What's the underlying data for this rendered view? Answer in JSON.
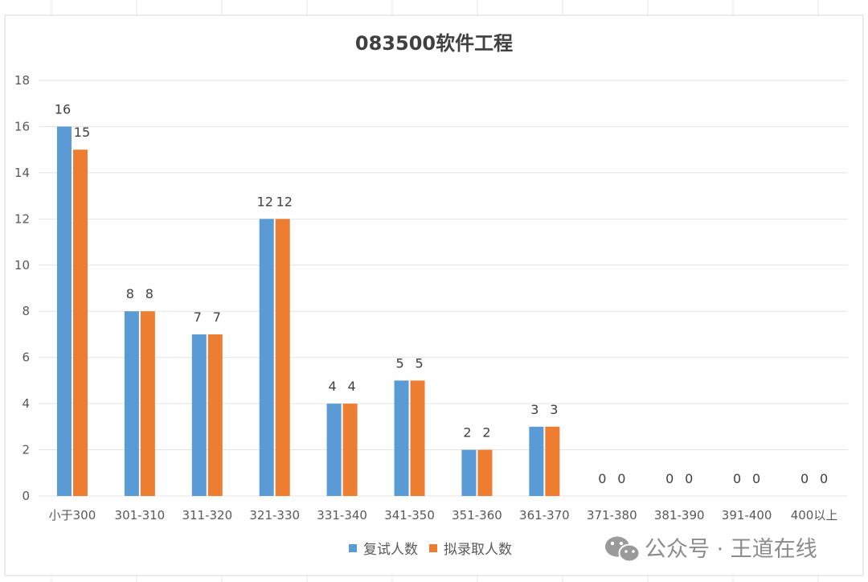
{
  "chart_data": {
    "type": "bar",
    "title": "083500软件工程",
    "xlabel": "",
    "ylabel": "",
    "ylim": [
      0,
      18
    ],
    "yticks": [
      0,
      2,
      4,
      6,
      8,
      10,
      12,
      14,
      16,
      18
    ],
    "grid": true,
    "legend_position": "bottom",
    "categories": [
      "小于300",
      "301-310",
      "311-320",
      "321-330",
      "331-340",
      "341-350",
      "351-360",
      "361-370",
      "371-380",
      "381-390",
      "391-400",
      "400以上"
    ],
    "series": [
      {
        "name": "复试人数",
        "color": "#5b9bd5",
        "values": [
          16,
          8,
          7,
          12,
          4,
          5,
          2,
          3,
          0,
          0,
          0,
          0
        ]
      },
      {
        "name": "拟录取人数",
        "color": "#ed7d31",
        "values": [
          15,
          8,
          7,
          12,
          4,
          5,
          2,
          3,
          0,
          0,
          0,
          0
        ]
      }
    ]
  },
  "watermark": {
    "text": "公众号 · 王道在线",
    "icon": "wechat-icon"
  }
}
